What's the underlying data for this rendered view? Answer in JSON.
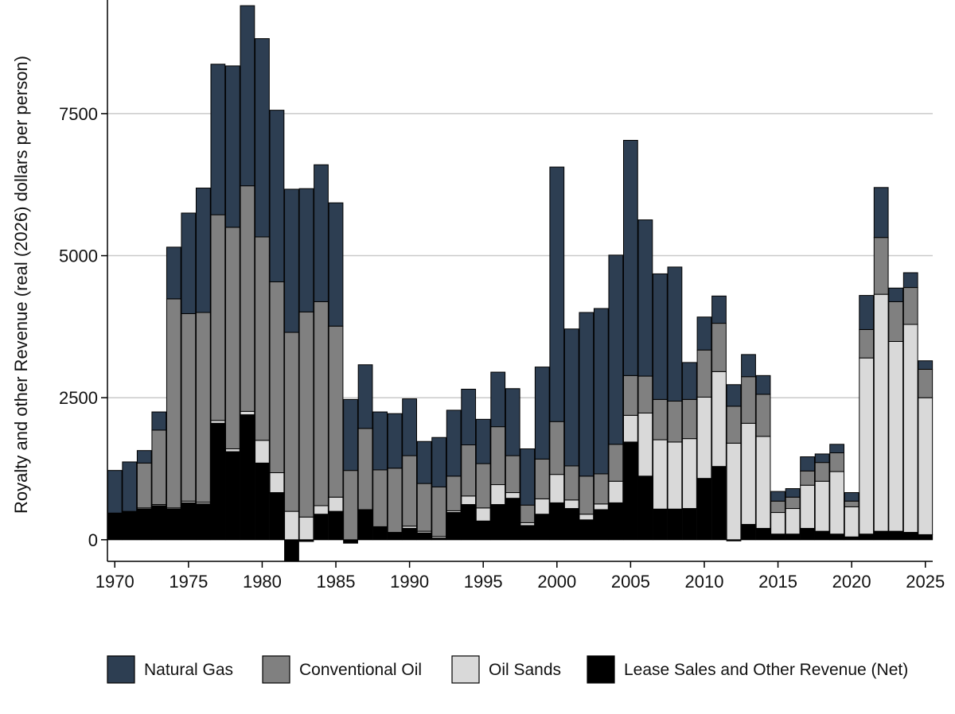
{
  "chart_data": {
    "type": "bar",
    "stacked": true,
    "title": "",
    "xlabel": "",
    "ylabel": "Royalty and other Revenue (real (2026) dollars per person)",
    "xlim": [
      1969.5,
      2025.5
    ],
    "ylim": [
      -380,
      9500
    ],
    "x_ticks": [
      1970,
      1975,
      1980,
      1985,
      1990,
      1995,
      2000,
      2005,
      2010,
      2015,
      2020,
      2025
    ],
    "y_ticks": [
      0,
      2500,
      5000,
      7500
    ],
    "grid": true,
    "legend_position": "bottom",
    "colors": {
      "Natural Gas": "#2d3e52",
      "Conventional Oil": "#808080",
      "Oil Sands": "#d9d9d9",
      "Lease Sales and Other Revenue (Net)": "#000000",
      "outline": "#000000",
      "grid": "#c9c9c9"
    },
    "x": [
      1970,
      1971,
      1972,
      1973,
      1974,
      1975,
      1976,
      1977,
      1978,
      1979,
      1980,
      1981,
      1982,
      1983,
      1984,
      1985,
      1986,
      1987,
      1988,
      1989,
      1990,
      1991,
      1992,
      1993,
      1994,
      1995,
      1996,
      1997,
      1998,
      1999,
      2000,
      2001,
      2002,
      2003,
      2004,
      2005,
      2006,
      2007,
      2008,
      2009,
      2010,
      2011,
      2012,
      2013,
      2014,
      2015,
      2016,
      2017,
      2018,
      2019,
      2020,
      2021,
      2022,
      2023,
      2024,
      2025
    ],
    "series": [
      {
        "name": "Lease Sales and Other Revenue (Net)",
        "values": [
          470,
          500,
          540,
          600,
          540,
          650,
          630,
          2050,
          1550,
          2200,
          1350,
          830,
          -380,
          -30,
          450,
          500,
          -60,
          530,
          230,
          130,
          200,
          120,
          30,
          480,
          620,
          330,
          620,
          730,
          250,
          450,
          650,
          550,
          350,
          530,
          650,
          1720,
          1120,
          540,
          540,
          550,
          1080,
          1290,
          -20,
          270,
          200,
          100,
          100,
          200,
          150,
          100,
          50,
          100,
          150,
          150,
          130,
          90
        ]
      },
      {
        "name": "Oil Sands",
        "values": [
          0,
          0,
          20,
          20,
          20,
          30,
          30,
          50,
          50,
          60,
          400,
          350,
          500,
          400,
          150,
          250,
          0,
          0,
          0,
          0,
          40,
          30,
          30,
          30,
          150,
          230,
          350,
          100,
          50,
          270,
          500,
          150,
          100,
          100,
          380,
          470,
          1110,
          1220,
          1180,
          1230,
          1430,
          1670,
          1700,
          1780,
          1620,
          380,
          450,
          760,
          880,
          1100,
          530,
          3100,
          4170,
          3340,
          3660,
          2410
        ]
      },
      {
        "name": "Conventional Oil",
        "values": [
          0,
          0,
          790,
          1310,
          3680,
          3300,
          3340,
          3620,
          3900,
          3970,
          3580,
          3360,
          3150,
          3610,
          3590,
          3010,
          1220,
          1430,
          1000,
          1130,
          1240,
          840,
          870,
          610,
          900,
          780,
          1020,
          650,
          310,
          700,
          930,
          600,
          670,
          530,
          650,
          700,
          650,
          710,
          720,
          690,
          830,
          850,
          650,
          820,
          740,
          200,
          200,
          250,
          330,
          330,
          100,
          500,
          1000,
          700,
          650,
          500
        ]
      },
      {
        "name": "Natural Gas",
        "values": [
          750,
          870,
          220,
          320,
          910,
          1770,
          2190,
          2650,
          2840,
          3170,
          3490,
          3020,
          2520,
          2170,
          2410,
          2170,
          1250,
          1120,
          1020,
          960,
          1000,
          740,
          870,
          1160,
          980,
          780,
          960,
          1180,
          990,
          1620,
          4480,
          2410,
          2880,
          2910,
          3330,
          4140,
          2750,
          2210,
          2360,
          650,
          580,
          480,
          380,
          390,
          330,
          170,
          150,
          250,
          150,
          150,
          150,
          600,
          880,
          240,
          260,
          150
        ]
      }
    ]
  }
}
